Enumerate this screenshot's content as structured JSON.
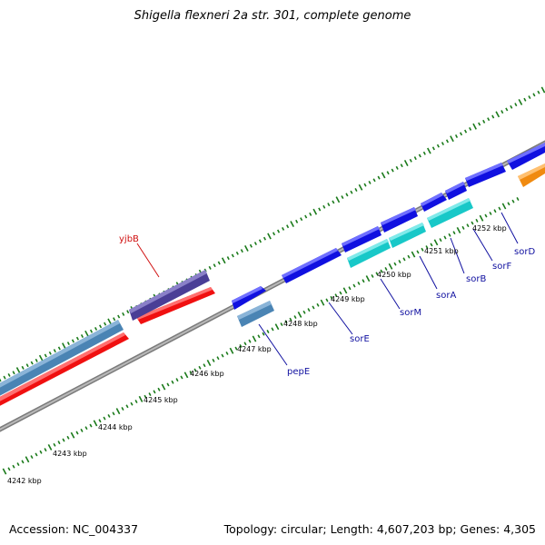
{
  "title": "Shigella flexneri 2a str. 301, complete genome",
  "footer": {
    "accession": "Accession: NC_004337",
    "summary": "Topology: circular; Length: 4,607,203 bp; Genes: 4,305"
  },
  "colors": {
    "backbone": "#8a8a8a",
    "tick": "#1a7a1a",
    "forward_gene": "#1010e0",
    "forward_gene_alt": "#4a3e96",
    "cds_light": "#18c8c8",
    "cds_steel": "#4a84b4",
    "reverse_gene": "#f01010",
    "orange_gene": "#f08a10",
    "label_blue": "#1010a0",
    "label_red": "#d01010"
  },
  "scale_labels": [
    "4242 kbp",
    "4243 kbp",
    "4244 kbp",
    "4245 kbp",
    "4246 kbp",
    "4247 kbp",
    "4248 kbp",
    "4249 kbp",
    "4250 kbp",
    "4251 kbp",
    "4252 kbp"
  ],
  "gene_labels": [
    {
      "name": "yjbB",
      "color": "label_red"
    },
    {
      "name": "pepE",
      "color": "label_blue"
    },
    {
      "name": "sorE",
      "color": "label_blue"
    },
    {
      "name": "sorM",
      "color": "label_blue"
    },
    {
      "name": "sorA",
      "color": "label_blue"
    },
    {
      "name": "sorB",
      "color": "label_blue"
    },
    {
      "name": "sorF",
      "color": "label_blue"
    },
    {
      "name": "sorD",
      "color": "label_blue"
    }
  ]
}
